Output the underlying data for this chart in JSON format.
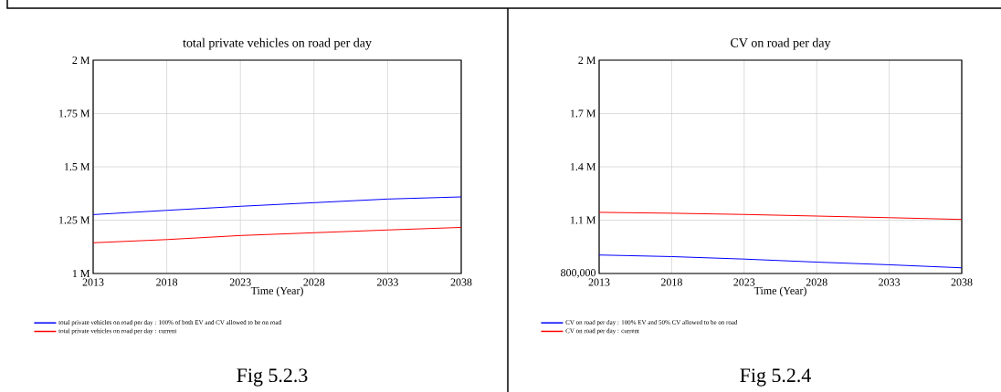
{
  "chart_data": [
    {
      "type": "line",
      "title": "total private vehicles on road per day",
      "xlabel": "Time (Year)",
      "x": [
        2013,
        2018,
        2023,
        2028,
        2033,
        2038
      ],
      "series": [
        {
          "name": "total private vehicles on road per day : 100% of both EV and CV allowed to be on road",
          "color": "#0000ff",
          "values": [
            1276000,
            1296000,
            1315000,
            1332000,
            1349000,
            1359000
          ]
        },
        {
          "name": "total private vehicles on road per day : current",
          "color": "#ff0000",
          "values": [
            1144000,
            1159000,
            1178000,
            1191000,
            1204000,
            1216000
          ]
        }
      ],
      "xlim": [
        2013,
        2038
      ],
      "xticks": [
        2013,
        2018,
        2023,
        2028,
        2033,
        2038
      ],
      "ylim": [
        1000000,
        2000000
      ],
      "yticks": [
        {
          "value": 1000000,
          "label": "1 M"
        },
        {
          "value": 1250000,
          "label": "1.25 M"
        },
        {
          "value": 1500000,
          "label": "1.5 M"
        },
        {
          "value": 1750000,
          "label": "1.75 M"
        },
        {
          "value": 2000000,
          "label": "2 M"
        }
      ],
      "grid": true,
      "legend": "bottom",
      "annotations": [
        "Fig 5.2.3"
      ]
    },
    {
      "type": "line",
      "title": "CV on road per day",
      "xlabel": "Time (Year)",
      "x": [
        2013,
        2018,
        2023,
        2028,
        2033,
        2038
      ],
      "series": [
        {
          "name": "CV on road per day : 100%  EV and 50% CV allowed to be on road",
          "color": "#0000ff",
          "values": [
            904000,
            895000,
            881000,
            864000,
            849000,
            832000
          ]
        },
        {
          "name": "CV on road per day : current",
          "color": "#ff0000",
          "values": [
            1144000,
            1139000,
            1132000,
            1123000,
            1114000,
            1104000
          ]
        }
      ],
      "xlim": [
        2013,
        2038
      ],
      "xticks": [
        2013,
        2018,
        2023,
        2028,
        2033,
        2038
      ],
      "ylim": [
        800000,
        2000000
      ],
      "yticks": [
        {
          "value": 800000,
          "label": "800,000"
        },
        {
          "value": 1100000,
          "label": "1.1 M"
        },
        {
          "value": 1400000,
          "label": "1.4 M"
        },
        {
          "value": 1700000,
          "label": "1.7 M"
        },
        {
          "value": 2000000,
          "label": "2 M"
        }
      ],
      "grid": true,
      "legend": "bottom",
      "annotations": [
        "Fig 5.2.4"
      ]
    }
  ]
}
